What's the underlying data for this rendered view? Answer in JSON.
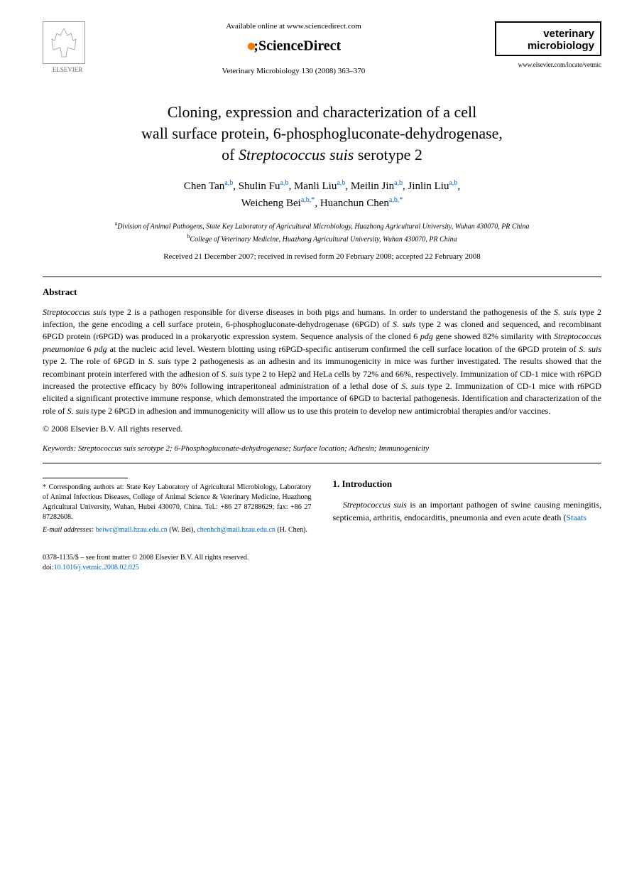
{
  "header": {
    "publisher": "ELSEVIER",
    "available_text": "Available online at www.sciencedirect.com",
    "platform": "ScienceDirect",
    "citation": "Veterinary Microbiology 130 (2008) 363–370",
    "journal_name_line1": "veterinary",
    "journal_name_line2": "microbiology",
    "journal_url": "www.elsevier.com/locate/vetmic"
  },
  "title": {
    "line1": "Cloning, expression and characterization of a cell",
    "line2": "wall surface protein, 6-phosphogluconate-dehydrogenase,",
    "line3_prefix": "of ",
    "line3_italic": "Streptococcus suis",
    "line3_suffix": " serotype 2"
  },
  "authors": {
    "a1_name": "Chen Tan",
    "a1_sup": "a,b",
    "a2_name": "Shulin Fu",
    "a2_sup": "a,b",
    "a3_name": "Manli Liu",
    "a3_sup": "a,b",
    "a4_name": "Meilin Jin",
    "a4_sup": "a,b",
    "a5_name": "Jinlin Liu",
    "a5_sup": "a,b",
    "a6_name": "Weicheng Bei",
    "a6_sup": "a,b,",
    "a6_star": "*",
    "a7_name": "Huanchun Chen",
    "a7_sup": "a,b,",
    "a7_star": "*"
  },
  "affiliations": {
    "a_sup": "a",
    "a_text": "Division of Animal Pathogens, State Key Laboratory of Agricultural Microbiology, Huazhong Agricultural University, Wuhan 430070, PR China",
    "b_sup": "b",
    "b_text": "College of Veterinary Medicine, Huazhong Agricultural University, Wuhan 430070, PR China"
  },
  "dates": "Received 21 December 2007; received in revised form 20 February 2008; accepted 22 February 2008",
  "abstract": {
    "heading": "Abstract",
    "body_html": "<em>Streptococcus suis</em> type 2 is a pathogen responsible for diverse diseases in both pigs and humans. In order to understand the pathogenesis of the <em>S. suis</em> type 2 infection, the gene encoding a cell surface protein, 6-phosphogluconate-dehydrogenase (6PGD) of <em>S. suis</em> type 2 was cloned and sequenced, and recombinant 6PGD protein (r6PGD) was produced in a prokaryotic expression system. Sequence analysis of the cloned 6 <em>pdg</em> gene showed 82% similarity with <em>Streptococcus pneumoniae</em> 6 <em>pdg</em> at the nucleic acid level. Western blotting using r6PGD-specific antiserum confirmed the cell surface location of the 6PGD protein of <em>S. suis</em> type 2. The role of 6PGD in <em>S. suis</em> type 2 pathogenesis as an adhesin and its immunogenicity in mice was further investigated. The results showed that the recombinant protein interfered with the adhesion of <em>S. suis</em> type 2 to Hep2 and HeLa cells by 72% and 66%, respectively. Immunization of CD-1 mice with r6PGD increased the protective efficacy by 80% following intraperitoneal administration of a lethal dose of <em>S. suis</em> type 2. Immunization of CD-1 mice with r6PGD elicited a significant protective immune response, which demonstrated the importance of 6PGD to bacterial pathogenesis. Identification and characterization of the role of <em>S. suis</em> type 2 6PGD in adhesion and immunogenicity will allow us to use this protein to develop new antimicrobial therapies and/or vaccines.",
    "copyright": "© 2008 Elsevier B.V. All rights reserved."
  },
  "keywords": {
    "label": "Keywords:",
    "text": " Streptococcus suis serotype 2; 6-Phosphogluconate-dehydrogenase; Surface location; Adhesin; Immunogenicity"
  },
  "corresponding": {
    "star": "*",
    "text": " Corresponding authors at: State Key Laboratory of Agricultural Microbiology, Laboratory of Animal Infectious Diseases, College of Animal Science & Veterinary Medicine, Huazhong Agricultural University, Wuhan, Hubei 430070, China. Tel.: +86 27 87288629; fax: +86 27 87282608.",
    "email_label": "E-mail addresses:",
    "email1": "beiwc@mail.hzau.edu.cn",
    "email1_name": " (W. Bei), ",
    "email2": "chenhch@mail.hzau.edu.cn",
    "email2_name": " (H. Chen)."
  },
  "introduction": {
    "heading": "1. Introduction",
    "body_html": "<em>Streptococcus suis</em> is an important pathogen of swine causing meningitis, septicemia, arthritis, endocarditis, pneumonia and even acute death (<span class='email-link'>Staats</span>"
  },
  "footer": {
    "issn_line": "0378-1135/$ – see front matter © 2008 Elsevier B.V. All rights reserved.",
    "doi_prefix": "doi:",
    "doi": "10.1016/j.vetmic.2008.02.025"
  },
  "colors": {
    "link": "#0066cc",
    "text": "#000000",
    "background": "#ffffff",
    "orange_dot": "#f57c00"
  }
}
